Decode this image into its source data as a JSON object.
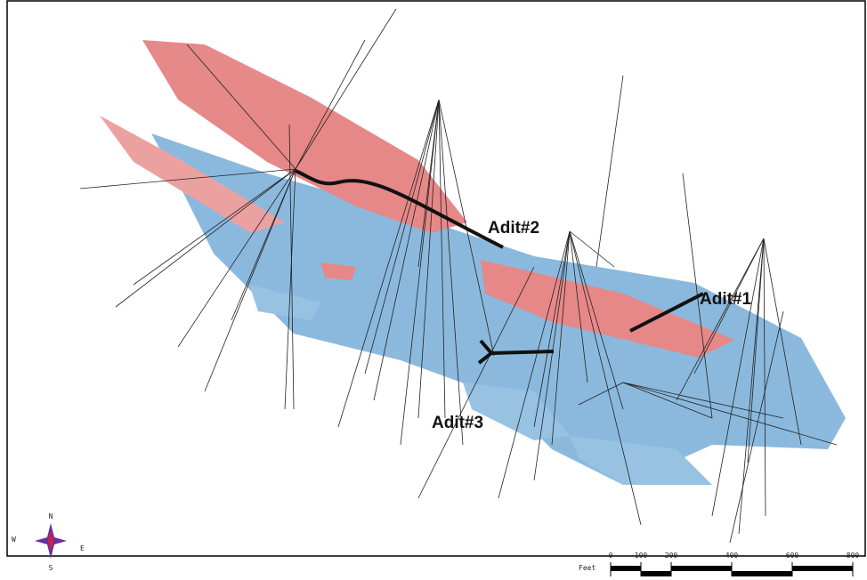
{
  "labels": [
    "Adit#1",
    "Adit#2",
    "Adit#3"
  ],
  "compass": {
    "north": "N",
    "south": "S",
    "east": "E",
    "west": "W"
  },
  "scale_bar": {
    "unit": "Feet",
    "ticks": [
      0,
      100,
      200,
      400,
      600,
      800
    ]
  }
}
